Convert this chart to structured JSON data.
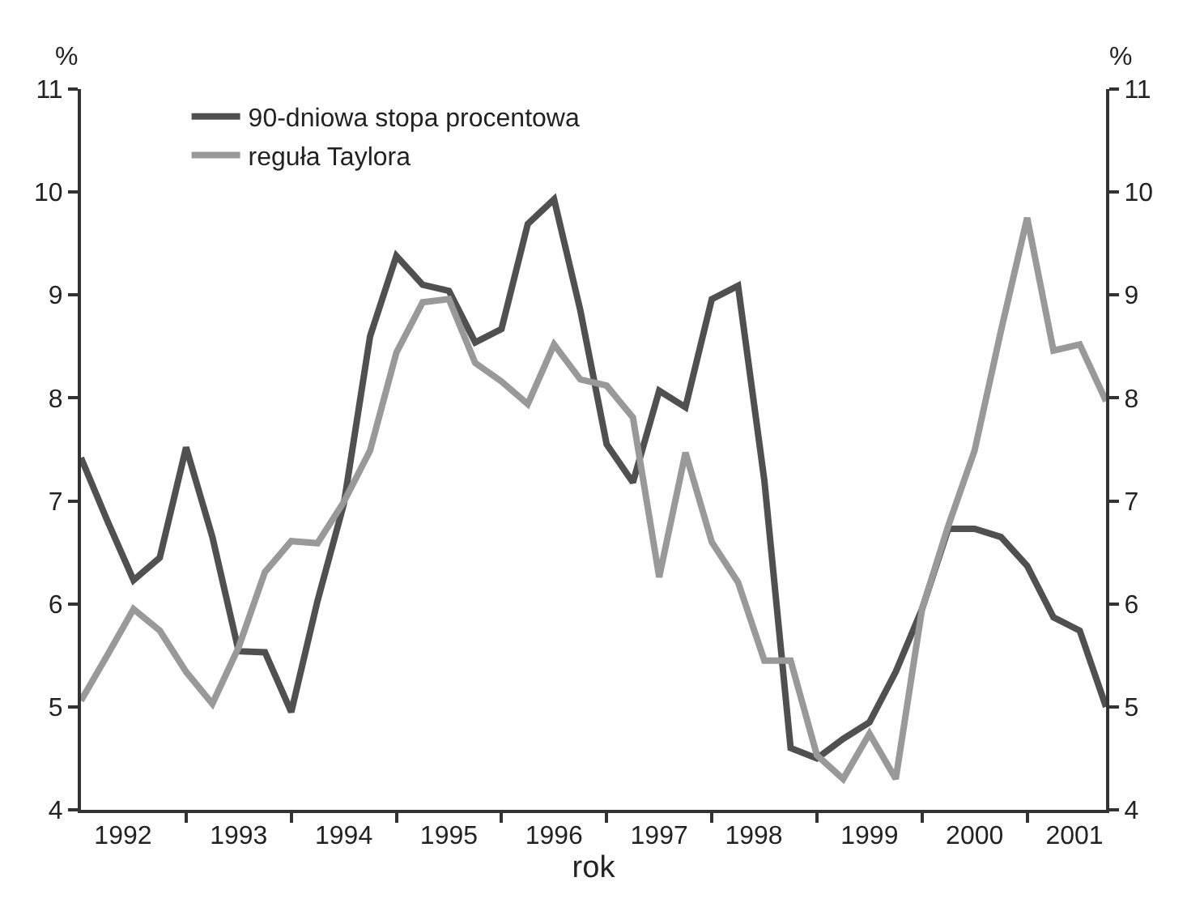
{
  "chart_data": {
    "type": "line",
    "xlabel": "rok",
    "ylabel": "%",
    "y2label": "%",
    "x": [
      1992,
      1992.25,
      1992.5,
      1992.75,
      1993,
      1993.25,
      1993.5,
      1993.75,
      1994,
      1994.25,
      1994.5,
      1994.75,
      1995,
      1995.25,
      1995.5,
      1995.75,
      1996,
      1996.25,
      1996.5,
      1996.75,
      1997,
      1997.25,
      1997.5,
      1997.75,
      1998,
      1998.25,
      1998.5,
      1998.75,
      1999,
      1999.25,
      1999.5,
      1999.75,
      2000,
      2000.25,
      2000.5,
      2000.75,
      2001,
      2001.25,
      2001.5,
      2001.75
    ],
    "series": [
      {
        "name": "90-dniowa stopa procentowa",
        "color": "#505050",
        "values": [
          7.42,
          6.81,
          6.23,
          6.45,
          7.52,
          6.65,
          5.54,
          5.53,
          4.95,
          6.03,
          6.97,
          8.6,
          9.38,
          9.1,
          9.04,
          8.54,
          8.67,
          9.69,
          9.93,
          8.85,
          7.55,
          7.18,
          8.07,
          7.91,
          8.96,
          9.09,
          7.2,
          4.6,
          4.5,
          4.69,
          4.85,
          5.34,
          5.95,
          6.73,
          6.73,
          6.65,
          6.37,
          5.87,
          5.74,
          5.0
        ]
      },
      {
        "name": "reguła Taylora",
        "color": "#999999",
        "values": [
          5.06,
          5.5,
          5.95,
          5.74,
          5.34,
          5.03,
          5.58,
          6.31,
          6.61,
          6.59,
          6.99,
          7.49,
          8.44,
          8.93,
          8.96,
          8.34,
          8.16,
          7.94,
          8.52,
          8.18,
          8.12,
          7.81,
          6.26,
          7.47,
          6.6,
          6.21,
          5.45,
          5.45,
          4.53,
          4.3,
          4.74,
          4.3,
          5.95,
          6.76,
          7.49,
          8.65,
          9.75,
          8.46,
          8.52,
          7.97
        ]
      }
    ],
    "xlim": [
      1992,
      2001.75
    ],
    "xticks": [
      {
        "value": 1992.4,
        "label": "1992"
      },
      {
        "value": 1993,
        "label": null
      },
      {
        "value": 1993.5,
        "label": "1993"
      },
      {
        "value": 1994,
        "label": null
      },
      {
        "value": 1994.5,
        "label": "1994"
      },
      {
        "value": 1995,
        "label": null
      },
      {
        "value": 1995.5,
        "label": "1995"
      },
      {
        "value": 1996,
        "label": null
      },
      {
        "value": 1996.5,
        "label": "1996"
      },
      {
        "value": 1997,
        "label": null
      },
      {
        "value": 1997.5,
        "label": "1997"
      },
      {
        "value": 1998,
        "label": null
      },
      {
        "value": 1998.4,
        "label": "1998"
      },
      {
        "value": 1999,
        "label": null
      },
      {
        "value": 1999.5,
        "label": "1999"
      },
      {
        "value": 2000,
        "label": null
      },
      {
        "value": 2000.5,
        "label": "2000"
      },
      {
        "value": 2001,
        "label": null
      },
      {
        "value": 2001.45,
        "label": "2001"
      }
    ],
    "ylim": [
      4,
      11
    ],
    "yticks": [
      4,
      5,
      6,
      7,
      8,
      9,
      10,
      11
    ],
    "y2lim": [
      4,
      11
    ],
    "y2ticks": [
      4,
      5,
      6,
      7,
      8,
      9,
      10,
      11
    ],
    "legend": "top left",
    "marker": "none",
    "line_style": "solid"
  }
}
